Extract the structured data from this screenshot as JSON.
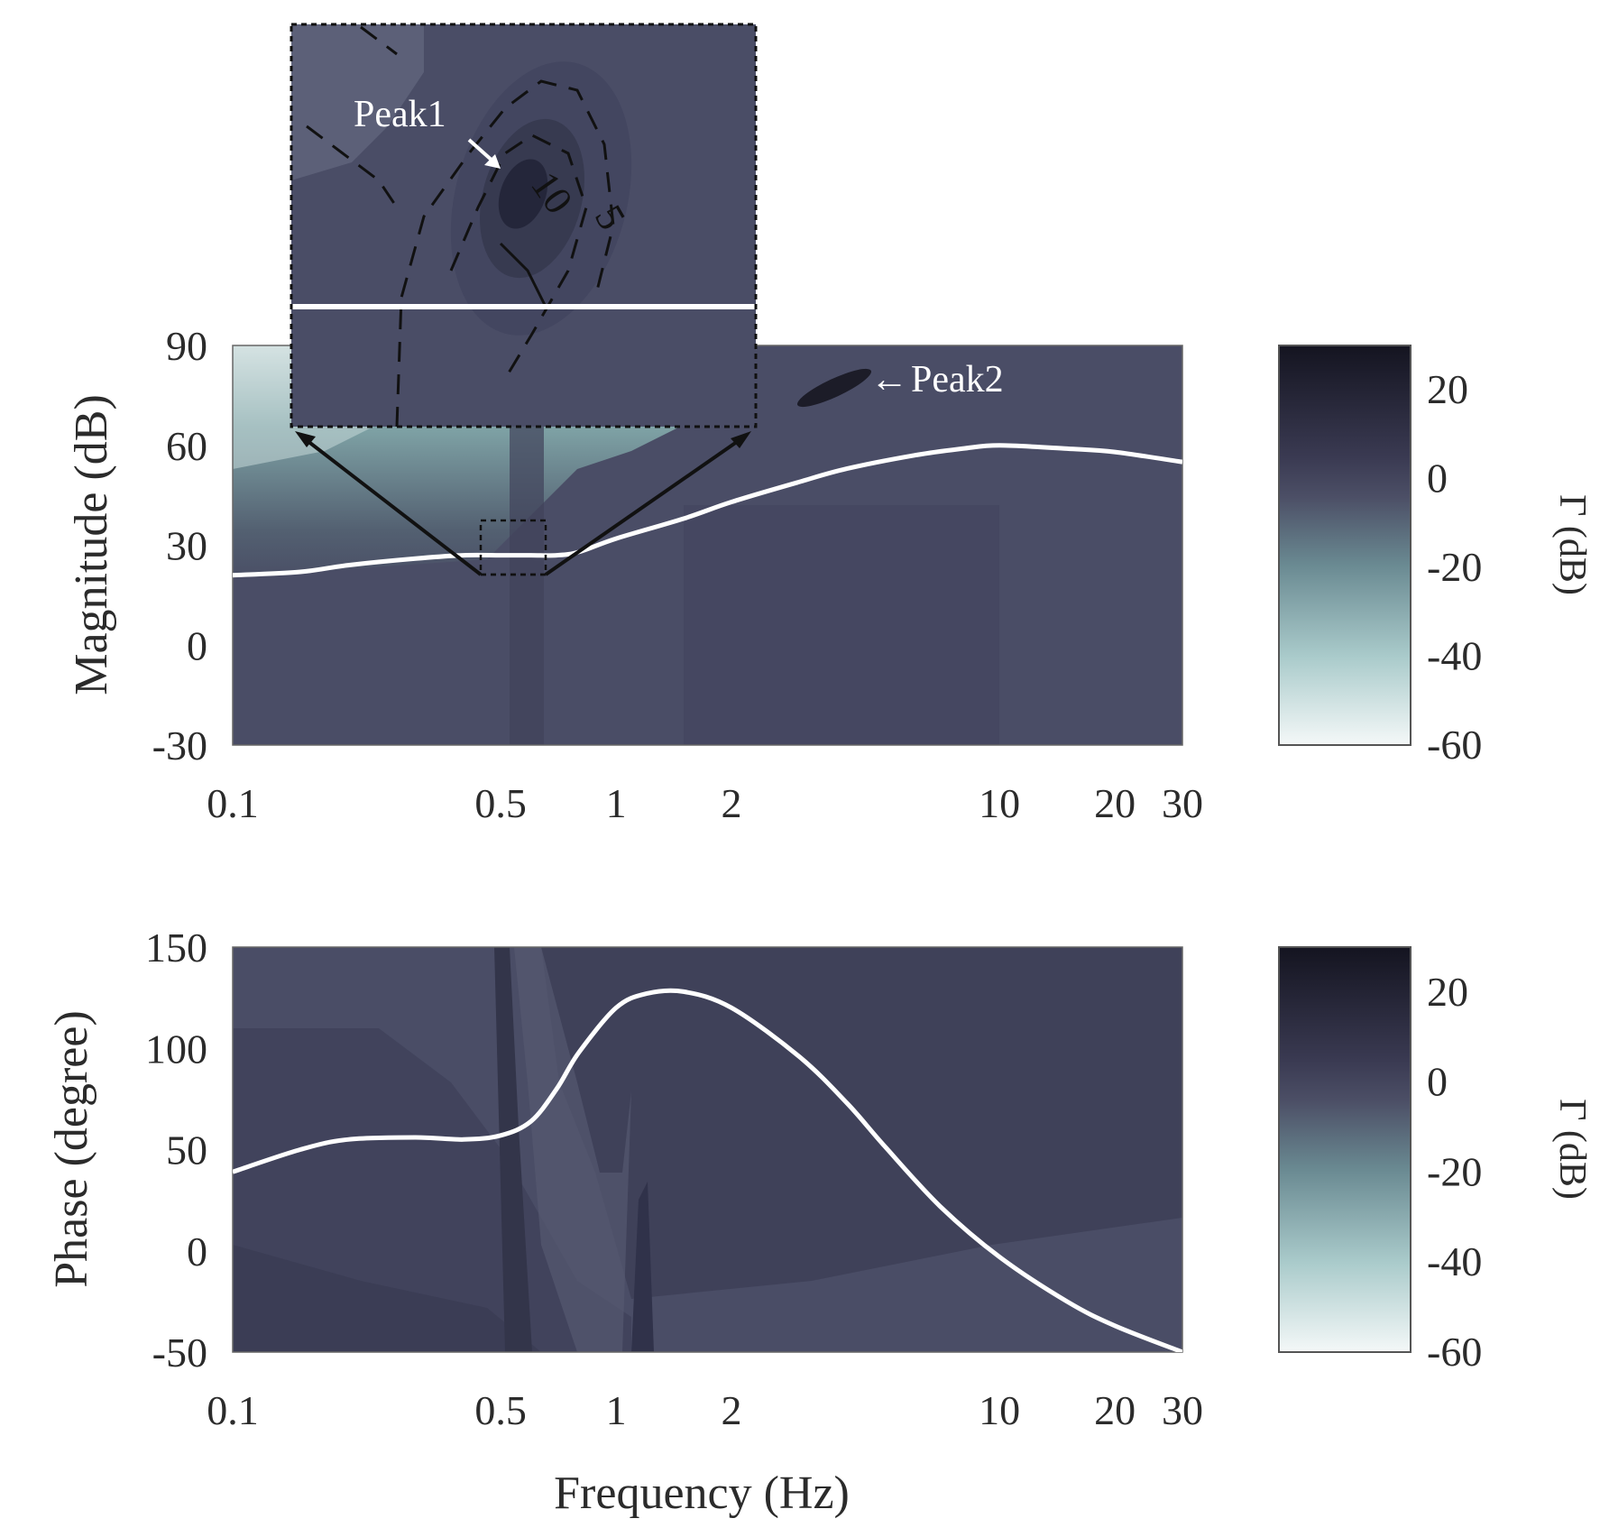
{
  "chart_data": [
    {
      "type": "heatmap",
      "panel": "magnitude",
      "ylabel": "Magnitude (dB)",
      "xlabel": "",
      "xscale": "log",
      "xlim": [
        0.1,
        30
      ],
      "ylim": [
        -30,
        90
      ],
      "xticks": [
        "0.1",
        "0.5",
        "1",
        "2",
        "10",
        "20",
        "30"
      ],
      "yticks": [
        "90",
        "60",
        "30",
        "0",
        "-30"
      ],
      "series": [
        {
          "x": [
            0.1,
            0.15,
            0.2,
            0.3,
            0.4,
            0.5,
            0.6,
            0.7,
            0.8,
            1,
            1.5,
            2,
            3,
            4,
            6,
            8,
            10,
            15,
            20,
            30
          ],
          "y": [
            21,
            22,
            24,
            26,
            27,
            27,
            27,
            27,
            28,
            32,
            38,
            43,
            49,
            53,
            57,
            59,
            60,
            59,
            58,
            55
          ]
        }
      ],
      "annotations": [
        "Peak1",
        "Peak2",
        "10",
        "5"
      ],
      "colorbar": {
        "label": "Γ (dB)",
        "ticks": [
          "20",
          "0",
          "-20",
          "-40",
          "-60"
        ],
        "range": [
          -60,
          30
        ]
      }
    },
    {
      "type": "heatmap",
      "panel": "phase",
      "ylabel": "Phase (degree)",
      "xlabel": "Frequency (Hz)",
      "xscale": "log",
      "xlim": [
        0.1,
        30
      ],
      "ylim": [
        -50,
        150
      ],
      "xticks": [
        "0.1",
        "0.5",
        "1",
        "2",
        "10",
        "20",
        "30"
      ],
      "yticks": [
        "150",
        "100",
        "50",
        "0",
        "-50"
      ],
      "series": [
        {
          "x": [
            0.1,
            0.15,
            0.2,
            0.3,
            0.4,
            0.5,
            0.6,
            0.7,
            0.8,
            1,
            1.2,
            1.5,
            2,
            3,
            4,
            5,
            7,
            10,
            15,
            20,
            30
          ],
          "y": [
            39,
            50,
            55,
            56,
            55,
            57,
            64,
            80,
            98,
            120,
            127,
            128,
            120,
            96,
            73,
            52,
            22,
            -3,
            -25,
            -37,
            -50
          ]
        }
      ],
      "colorbar": {
        "label": "Γ (dB)",
        "ticks": [
          "20",
          "0",
          "-20",
          "-40",
          "-60"
        ],
        "range": [
          -60,
          30
        ]
      }
    }
  ]
}
